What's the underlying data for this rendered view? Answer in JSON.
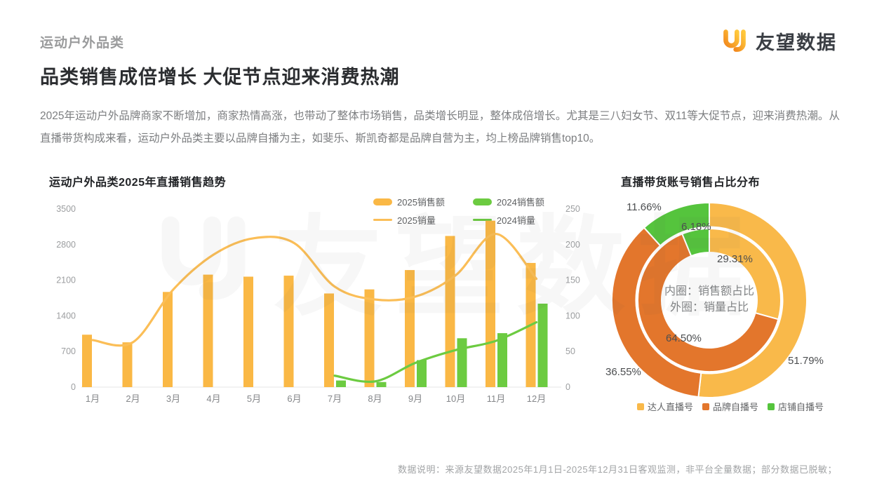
{
  "page": {
    "kicker": "运动户外品类",
    "title": "品类销售成倍增长 大促节点迎来消费热潮",
    "description": "2025年运动户外品牌商家不断增加，商家热情高涨，也带动了整体市场销售，品类增长明显，整体成倍增长。尤其是三八妇女节、双11等大促节点，迎来消费热潮。从直播带货构成来看，运动户外品类主要以品牌自播为主，如斐乐、斯凯奇都是品牌自营为主，均上榜品牌销售top10。",
    "footer": "数据说明：来源友望数据2025年1月1日-2025年12月31日客观监测，非平台全量数据；部分数据已脱敏；"
  },
  "brand": {
    "logo_text": "友望数据",
    "watermark_text": "友望数据",
    "logo_orange_dark": "#F28A1E",
    "logo_orange_light": "#FFC83C"
  },
  "chart_data": [
    {
      "type": "bar+line",
      "title": "运动户外品类2025年直播销售趋势",
      "categories": [
        "1月",
        "2月",
        "3月",
        "4月",
        "5月",
        "6月",
        "7月",
        "8月",
        "9月",
        "10月",
        "11月",
        "12月"
      ],
      "series": [
        {
          "name": "2025销售额",
          "kind": "bar",
          "axis": "left",
          "color": "#FAB845",
          "values": [
            1030,
            880,
            1870,
            2210,
            2170,
            2190,
            1840,
            1920,
            2300,
            2970,
            3270,
            2440
          ]
        },
        {
          "name": "2024销售额",
          "kind": "bar",
          "axis": "left",
          "color": "#6CCB41",
          "values": [
            null,
            null,
            null,
            null,
            null,
            null,
            130,
            100,
            530,
            960,
            1060,
            1640
          ]
        },
        {
          "name": "2025销量",
          "kind": "line",
          "axis": "right",
          "color": "#FBBE57",
          "values": [
            66,
            63,
            137,
            186,
            209,
            202,
            141,
            123,
            127,
            157,
            215,
            152
          ]
        },
        {
          "name": "2024销量",
          "kind": "line",
          "axis": "right",
          "color": "#6CCB41",
          "values": [
            null,
            null,
            null,
            null,
            null,
            null,
            16,
            8,
            34,
            52,
            65,
            91
          ]
        }
      ],
      "left_axis": {
        "min": 0,
        "max": 3500,
        "ticks": [
          0,
          700,
          1400,
          2100,
          2800,
          3500
        ]
      },
      "right_axis": {
        "min": 0,
        "max": 250,
        "ticks": [
          0,
          50,
          100,
          150,
          200,
          250
        ]
      },
      "grid": false,
      "legend_position": "top-right"
    },
    {
      "type": "donut",
      "title": "直播带货账号销售占比分布",
      "categories": [
        "达人直播号",
        "品牌自播号",
        "店铺自播号"
      ],
      "colors": [
        "#F9B94A",
        "#E3762C",
        "#55C43D"
      ],
      "inner_ring": {
        "name": "销售额占比",
        "values": [
          29.31,
          64.5,
          6.18
        ]
      },
      "outer_ring": {
        "name": "销量占比",
        "values": [
          51.79,
          36.55,
          11.66
        ]
      },
      "labels": {
        "inner": [
          "29.31%",
          "64.50%",
          "6.18%"
        ],
        "outer": [
          "51.79%",
          "36.55%",
          "11.66%"
        ]
      },
      "center_line1": "内圈：销售额占比",
      "center_line2": "外圈：销量占比",
      "legend_position": "bottom"
    }
  ]
}
